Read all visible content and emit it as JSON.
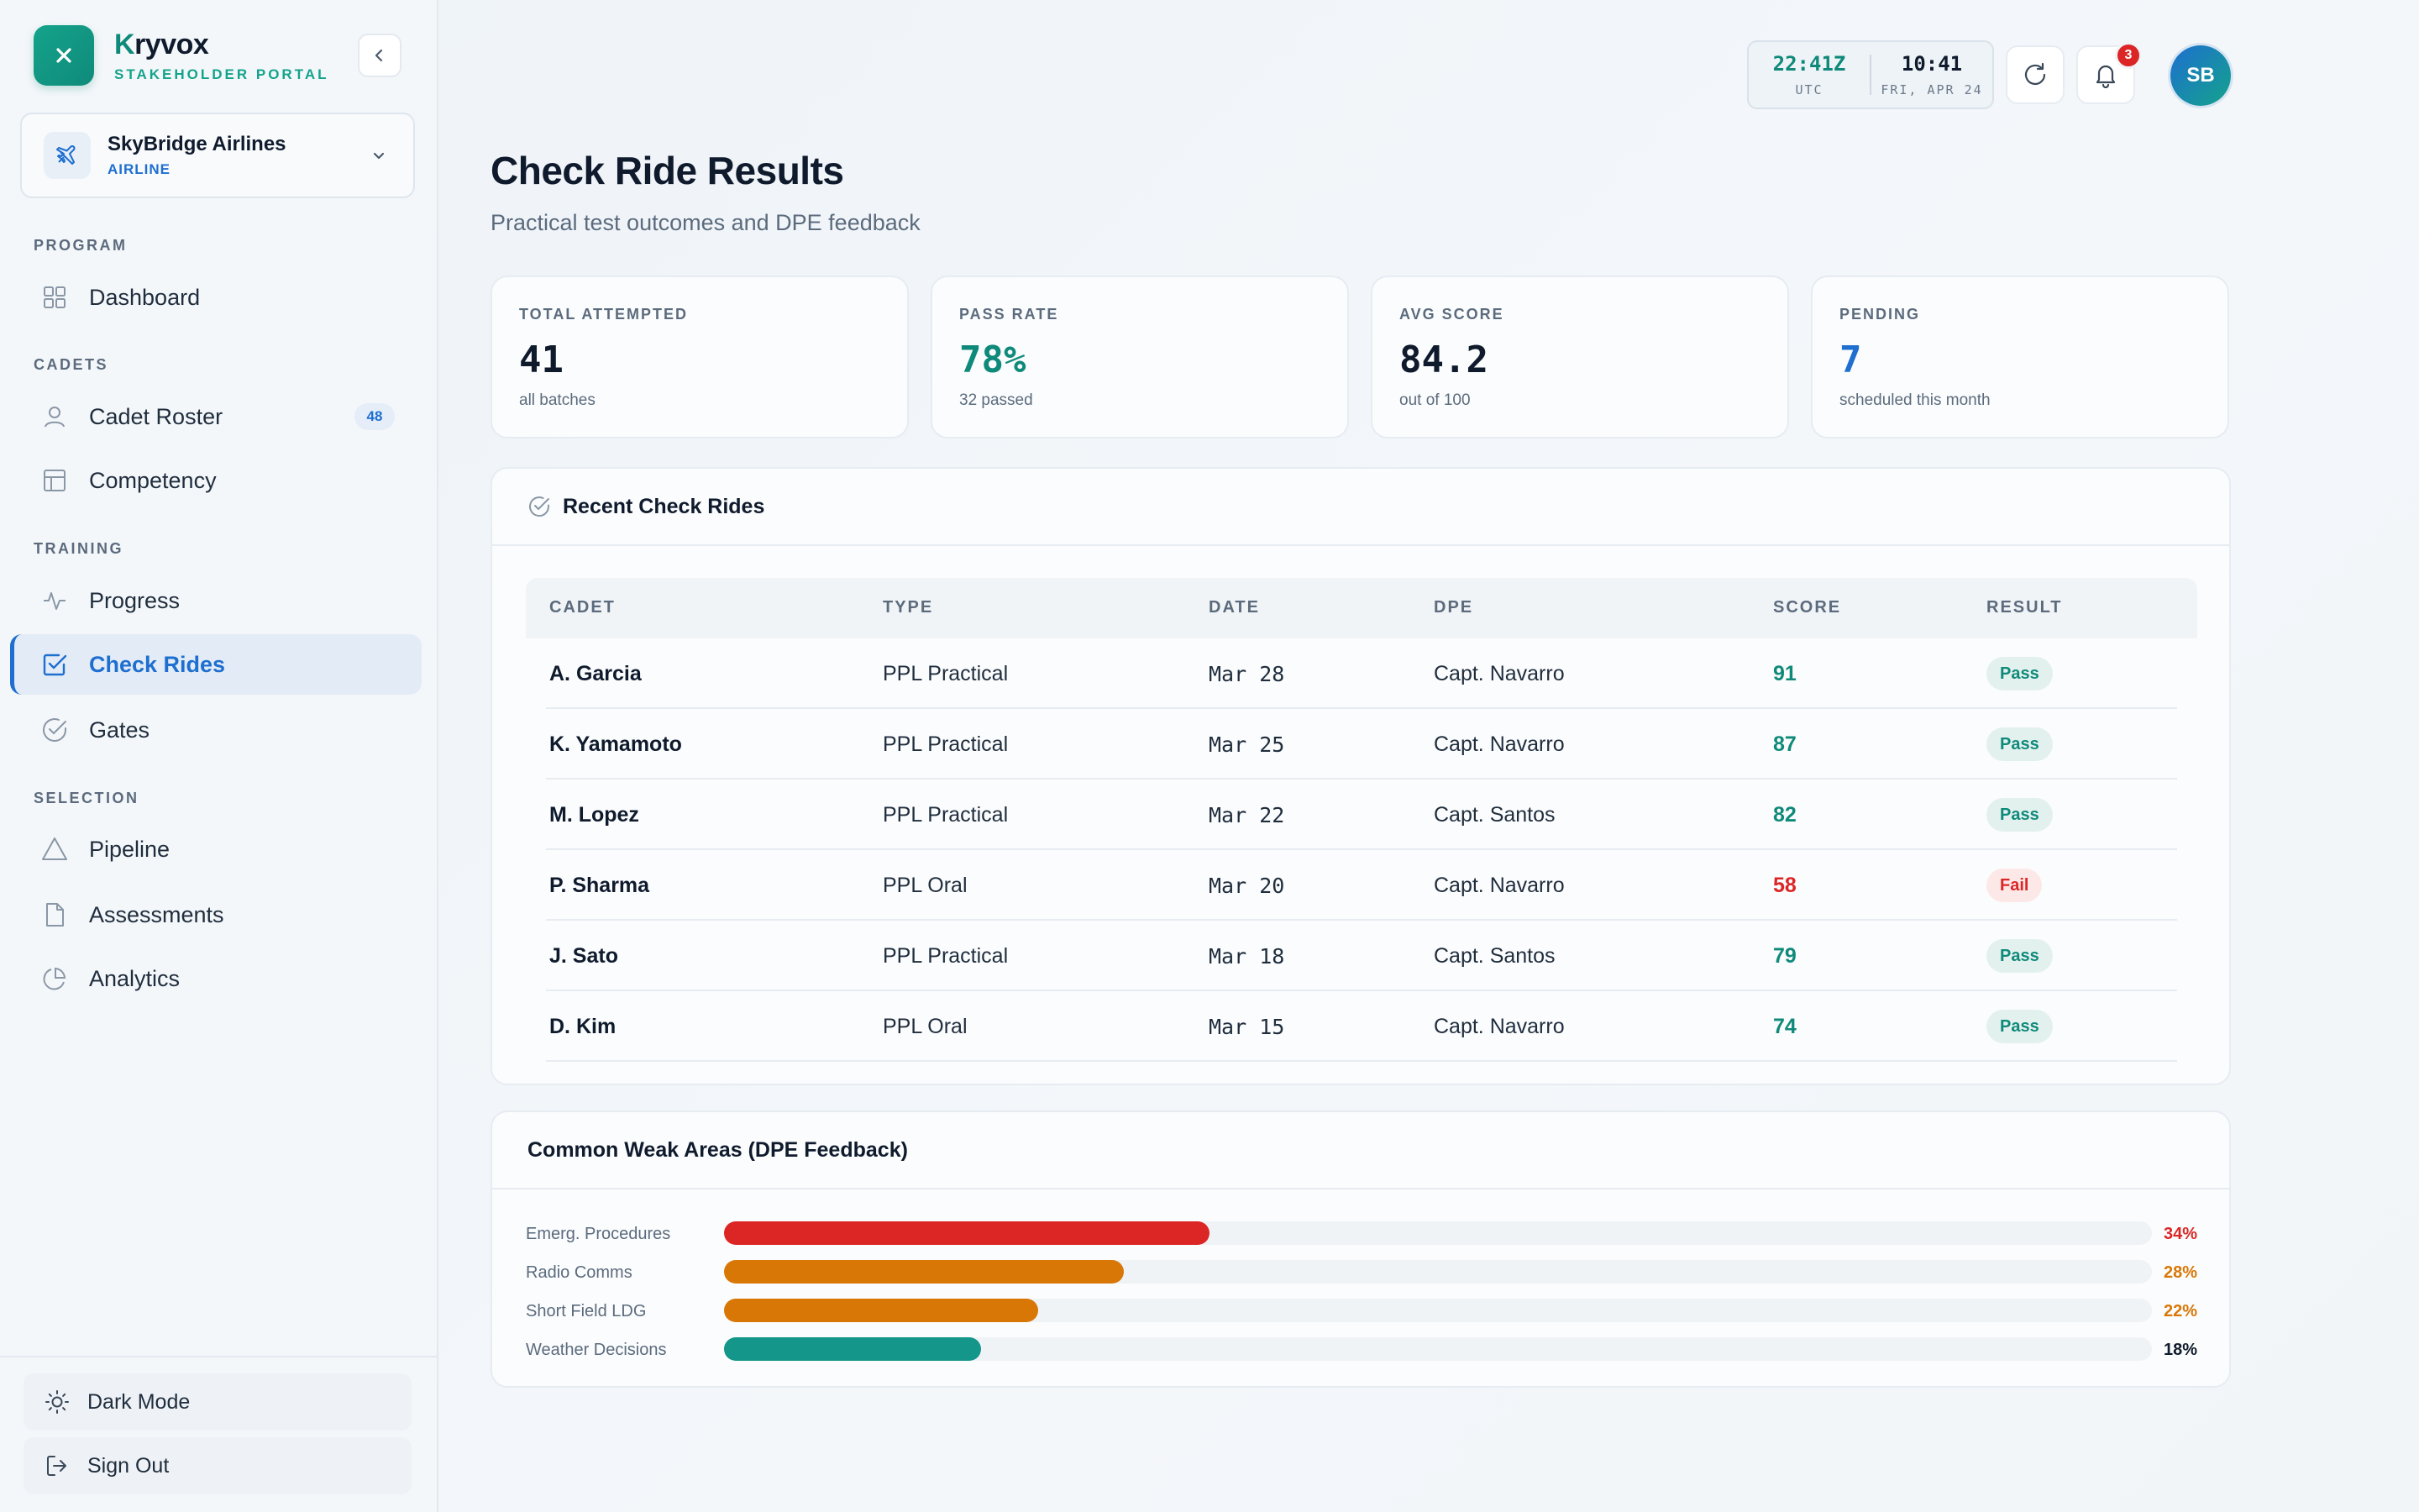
{
  "brand": {
    "name_first": "K",
    "name_rest": "ryvox",
    "subtitle": "STAKEHOLDER PORTAL"
  },
  "org": {
    "name": "SkyBridge Airlines",
    "type": "AIRLINE"
  },
  "nav": {
    "program_label": "PROGRAM",
    "dashboard": "Dashboard",
    "cadets_label": "CADETS",
    "cadet_roster": "Cadet Roster",
    "cadet_roster_count": "48",
    "competency": "Competency",
    "training_label": "TRAINING",
    "progress": "Progress",
    "check_rides": "Check Rides",
    "gates": "Gates",
    "selection_label": "SELECTION",
    "pipeline": "Pipeline",
    "assessments": "Assessments",
    "analytics": "Analytics"
  },
  "footer": {
    "dark_mode": "Dark Mode",
    "sign_out": "Sign Out"
  },
  "topbar": {
    "utc_time": "22:41Z",
    "utc_label": "UTC",
    "local_time": "10:41",
    "local_date": "FRI, APR 24",
    "notification_count": "3",
    "avatar_initials": "SB"
  },
  "page": {
    "title": "Check Ride Results",
    "subtitle": "Practical test outcomes and DPE feedback"
  },
  "stats": [
    {
      "label": "TOTAL ATTEMPTED",
      "value": "41",
      "sub": "all batches",
      "color": "#0f1b2d"
    },
    {
      "label": "PASS RATE",
      "value": "78%",
      "sub": "32 passed",
      "color": "#0f8a7a"
    },
    {
      "label": "AVG SCORE",
      "value": "84.2",
      "sub": "out of 100",
      "color": "#0f1b2d"
    },
    {
      "label": "PENDING",
      "value": "7",
      "sub": "scheduled this month",
      "color": "#1e6fd0"
    }
  ],
  "recent": {
    "title": "Recent Check Rides",
    "headers": [
      "CADET",
      "TYPE",
      "DATE",
      "DPE",
      "SCORE",
      "RESULT"
    ],
    "rows": [
      {
        "cadet": "A. Garcia",
        "type": "PPL Practical",
        "date": "Mar 28",
        "dpe": "Capt. Navarro",
        "score": "91",
        "result": "Pass"
      },
      {
        "cadet": "K. Yamamoto",
        "type": "PPL Practical",
        "date": "Mar 25",
        "dpe": "Capt. Navarro",
        "score": "87",
        "result": "Pass"
      },
      {
        "cadet": "M. Lopez",
        "type": "PPL Practical",
        "date": "Mar 22",
        "dpe": "Capt. Santos",
        "score": "82",
        "result": "Pass"
      },
      {
        "cadet": "P. Sharma",
        "type": "PPL Oral",
        "date": "Mar 20",
        "dpe": "Capt. Navarro",
        "score": "58",
        "result": "Fail"
      },
      {
        "cadet": "J. Sato",
        "type": "PPL Practical",
        "date": "Mar 18",
        "dpe": "Capt. Santos",
        "score": "79",
        "result": "Pass"
      },
      {
        "cadet": "D. Kim",
        "type": "PPL Oral",
        "date": "Mar 15",
        "dpe": "Capt. Navarro",
        "score": "74",
        "result": "Pass"
      }
    ]
  },
  "weak_areas": {
    "title": "Common Weak Areas (DPE Feedback)",
    "items": [
      {
        "label": "Emerg. Procedures",
        "value": "34%",
        "fraction": 0.34,
        "color": "#dc2626"
      },
      {
        "label": "Radio Comms",
        "value": "28%",
        "fraction": 0.28,
        "color": "#d97706"
      },
      {
        "label": "Short Field LDG",
        "value": "22%",
        "fraction": 0.22,
        "color": "#d97706"
      },
      {
        "label": "Weather Decisions",
        "value": "18%",
        "fraction": 0.18,
        "color": "#14968a"
      }
    ]
  },
  "colors": {
    "pass": "#0f8a7a",
    "fail": "#dc2626",
    "accent": "#1e6fd0"
  }
}
